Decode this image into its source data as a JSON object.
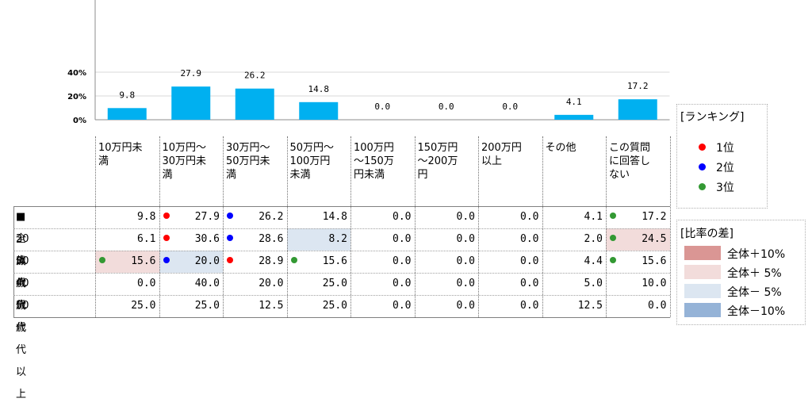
{
  "chart_data": {
    "type": "bar",
    "categories": [
      "10万円未満",
      "10万円～30万円未満",
      "30万円～50万円未満",
      "50万円～100万円未満",
      "100万円～150万円未満",
      "150万円～200万円",
      "200万円以上",
      "その他",
      "この質問に回答しない"
    ],
    "values": [
      9.8,
      27.9,
      26.2,
      14.8,
      0.0,
      0.0,
      0.0,
      4.1,
      17.2
    ],
    "value_labels": [
      "9.8",
      "27.9",
      "26.2",
      "14.8",
      "0.0",
      "0.0",
      "0.0",
      "4.1",
      "17.2"
    ],
    "y_ticks": [
      "0%",
      "20%",
      "40%"
    ],
    "ylim": [
      0,
      40
    ],
    "bar_color": "#00b0f0",
    "grid": true
  },
  "table": {
    "headers": [
      "10万円未\n満",
      "10万円～\n30万円未\n満",
      "30万円～\n50万円未\n満",
      "50万円～\n100万円\n未満",
      "100万円\n～150万\n円未満",
      "150万円\n～200万\n円",
      "200万円\n以上",
      "その他",
      "この質問\nに回答し\nない"
    ],
    "rows": [
      {
        "label": "■全体",
        "values": [
          "9.8",
          "27.9",
          "26.2",
          "14.8",
          "0.0",
          "0.0",
          "0.0",
          "4.1",
          "17.2"
        ],
        "ranks": [
          0,
          1,
          2,
          0,
          0,
          0,
          0,
          0,
          3
        ],
        "diffs": [
          0,
          0,
          0,
          0,
          0,
          0,
          0,
          0,
          0
        ]
      },
      {
        "label": "20歳代",
        "values": [
          "6.1",
          "30.6",
          "28.6",
          "8.2",
          "0.0",
          "0.0",
          "0.0",
          "2.0",
          "24.5"
        ],
        "ranks": [
          0,
          1,
          2,
          0,
          0,
          0,
          0,
          0,
          3
        ],
        "diffs": [
          0,
          0,
          0,
          -5,
          0,
          0,
          0,
          0,
          5
        ]
      },
      {
        "label": "30歳代",
        "values": [
          "15.6",
          "20.0",
          "28.9",
          "15.6",
          "0.0",
          "0.0",
          "0.0",
          "4.4",
          "15.6"
        ],
        "ranks": [
          3,
          2,
          1,
          3,
          0,
          0,
          0,
          0,
          3
        ],
        "diffs": [
          5,
          -5,
          0,
          0,
          0,
          0,
          0,
          0,
          0
        ]
      },
      {
        "label": "40歳代",
        "values": [
          "0.0",
          "40.0",
          "20.0",
          "25.0",
          "0.0",
          "0.0",
          "0.0",
          "5.0",
          "10.0"
        ],
        "ranks": [
          0,
          0,
          0,
          0,
          0,
          0,
          0,
          0,
          0
        ],
        "diffs": [
          0,
          0,
          0,
          0,
          0,
          0,
          0,
          0,
          0
        ]
      },
      {
        "label": "50歳代以上",
        "values": [
          "25.0",
          "25.0",
          "12.5",
          "25.0",
          "0.0",
          "0.0",
          "0.0",
          "12.5",
          "0.0"
        ],
        "ranks": [
          0,
          0,
          0,
          0,
          0,
          0,
          0,
          0,
          0
        ],
        "diffs": [
          0,
          0,
          0,
          0,
          0,
          0,
          0,
          0,
          0
        ]
      }
    ]
  },
  "ranking_legend": {
    "title": "[ランキング]",
    "items": [
      {
        "label": "1位",
        "color": "#ff0000"
      },
      {
        "label": "2位",
        "color": "#0000ff"
      },
      {
        "label": "3位",
        "color": "#339933"
      }
    ]
  },
  "diff_legend": {
    "title": "[比率の差]",
    "items": [
      {
        "label": "全体＋10%",
        "color": "#da9694"
      },
      {
        "label": "全体＋ 5%",
        "color": "#f2dcdb"
      },
      {
        "label": "全体－ 5%",
        "color": "#dce6f1"
      },
      {
        "label": "全体－10%",
        "color": "#95b3d7"
      }
    ]
  },
  "colors": {
    "plus5": "#f2dcdb",
    "plus10": "#da9694",
    "minus5": "#dce6f1",
    "minus10": "#95b3d7"
  }
}
